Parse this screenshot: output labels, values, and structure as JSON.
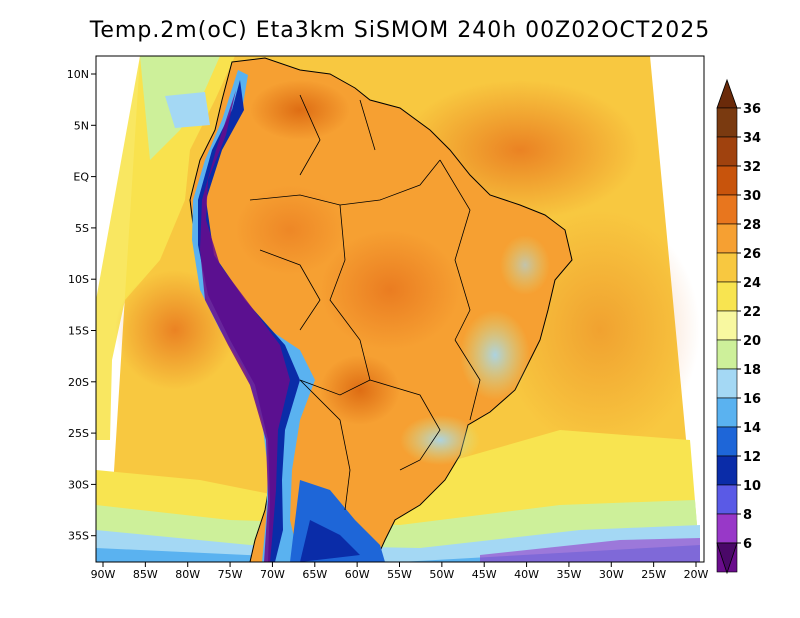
{
  "title": "Temp.2m(oC) Eta3km SiSMOM 240h 00Z02OCT2025",
  "map": {
    "lon_ticks": [
      "90W",
      "85W",
      "80W",
      "75W",
      "70W",
      "65W",
      "60W",
      "55W",
      "50W",
      "45W",
      "40W",
      "35W",
      "30W",
      "25W",
      "20W"
    ],
    "lat_ticks": [
      "10N",
      "5N",
      "EQ",
      "5S",
      "10S",
      "15S",
      "20S",
      "25S",
      "30S",
      "35S"
    ]
  },
  "colorbar": {
    "labels": [
      "36",
      "34",
      "32",
      "30",
      "28",
      "26",
      "24",
      "22",
      "20",
      "18",
      "16",
      "14",
      "12",
      "10",
      "8",
      "6"
    ],
    "colors": [
      "#7a3a10",
      "#a0420e",
      "#c8540c",
      "#e8761e",
      "#f6a032",
      "#f8c840",
      "#f8e450",
      "#f8f8a0",
      "#cdf09a",
      "#a4d8f4",
      "#5ab2f0",
      "#1e66d8",
      "#0a2ca8",
      "#5a5ae6",
      "#9838c8",
      "#6a0c8c"
    ],
    "cap_top_color": "#6a2a0a",
    "cap_bottom_color": "#4a0868"
  }
}
